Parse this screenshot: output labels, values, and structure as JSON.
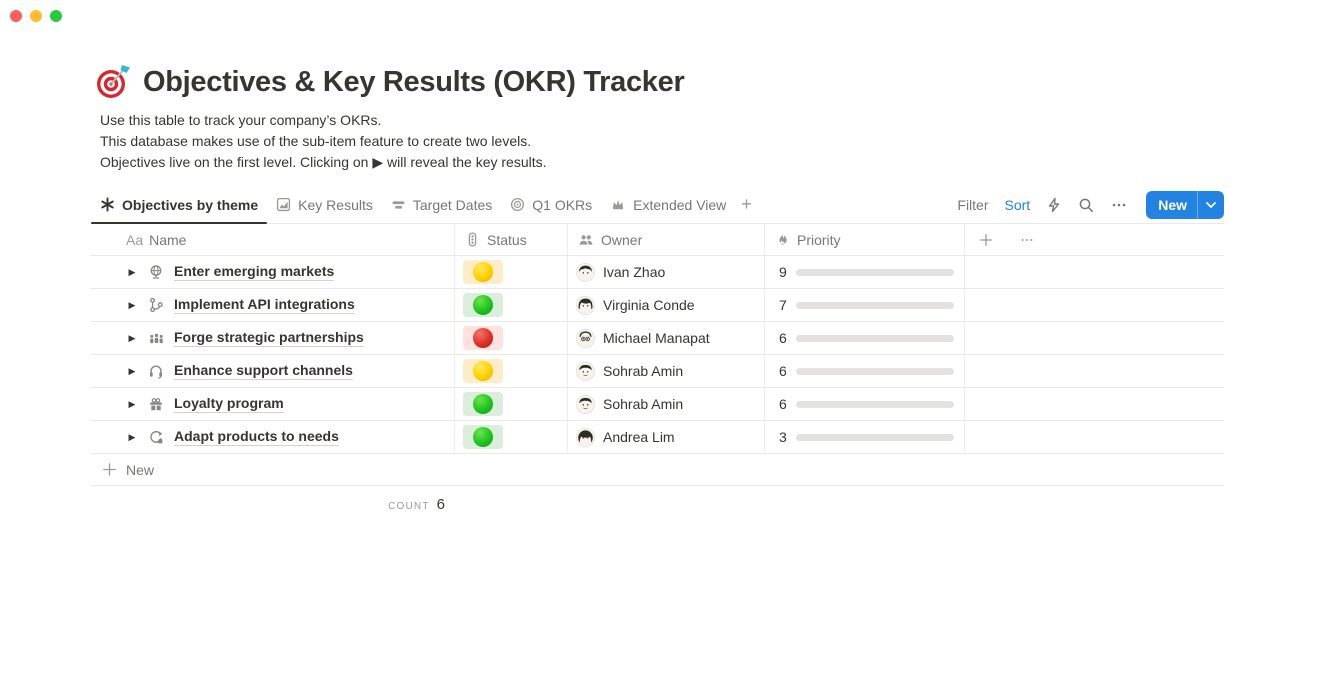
{
  "window": {
    "controls": [
      "close",
      "minimize",
      "zoom"
    ]
  },
  "page": {
    "title_emoji": "target-dart-icon",
    "title": "Objectives & Key Results (OKR) Tracker",
    "description_lines": [
      "Use this table to track your company’s OKRs.",
      "This database makes use of the sub-item feature to create two levels.",
      "Objectives live on the first level. Clicking on ▶ will reveal the key results."
    ]
  },
  "view_bar": {
    "tabs": [
      {
        "label": "Objectives by theme",
        "icon": "asterisk-icon",
        "active": true
      },
      {
        "label": "Key Results",
        "icon": "chart-icon",
        "active": false
      },
      {
        "label": "Target Dates",
        "icon": "timeline-icon",
        "active": false
      },
      {
        "label": "Q1 OKRs",
        "icon": "target-icon",
        "active": false
      },
      {
        "label": "Extended View",
        "icon": "crown-icon",
        "active": false
      }
    ],
    "add_view_label": "+",
    "actions": {
      "filter": "Filter",
      "sort": "Sort",
      "icons": [
        "bolt-icon",
        "search-icon",
        "more-icon"
      ]
    },
    "new_button": {
      "label": "New"
    }
  },
  "table": {
    "columns": [
      {
        "label": "Name",
        "icon": "text-icon",
        "icon_text": "Aa"
      },
      {
        "label": "Status",
        "icon": "traffic-light-icon"
      },
      {
        "label": "Owner",
        "icon": "people-icon"
      },
      {
        "label": "Priority",
        "icon": "flame-icon"
      }
    ],
    "extra_header_icons": [
      "plus-icon",
      "more-icon"
    ],
    "rows": [
      {
        "name": "Enter emerging markets",
        "icon": "globe-icon",
        "status": "yellow",
        "owner": "Ivan Zhao",
        "avatar": "ivan",
        "priority": 9
      },
      {
        "name": "Implement API integrations",
        "icon": "api-branch-icon",
        "status": "green",
        "owner": "Virginia Conde",
        "avatar": "virginia",
        "priority": 7
      },
      {
        "name": "Forge strategic partnerships",
        "icon": "partnership-icon",
        "status": "red",
        "owner": "Michael Manapat",
        "avatar": "michael",
        "priority": 6
      },
      {
        "name": "Enhance support channels",
        "icon": "headset-icon",
        "status": "yellow",
        "owner": "Sohrab Amin",
        "avatar": "sohrab",
        "priority": 6
      },
      {
        "name": "Loyalty program",
        "icon": "gift-icon",
        "status": "green",
        "owner": "Sohrab Amin",
        "avatar": "sohrab",
        "priority": 6
      },
      {
        "name": "Adapt products to needs",
        "icon": "adapt-icon",
        "status": "green",
        "owner": "Andrea Lim",
        "avatar": "andrea",
        "priority": 3
      }
    ],
    "priority_max": 10,
    "footer": {
      "add_label": "New",
      "count_label": "COUNT",
      "count_value": "6"
    }
  },
  "colors": {
    "accent_blue": "#2383E2",
    "bar_fill": "#548164",
    "bar_track": "#E3E2E0",
    "status_yellow_bg": "#FDECC8",
    "status_green_bg": "#DBEDDB",
    "status_red_bg": "#FFE2DD",
    "text_primary": "#37352F",
    "text_secondary": "#787774",
    "row_border": "#E9E9E7"
  }
}
